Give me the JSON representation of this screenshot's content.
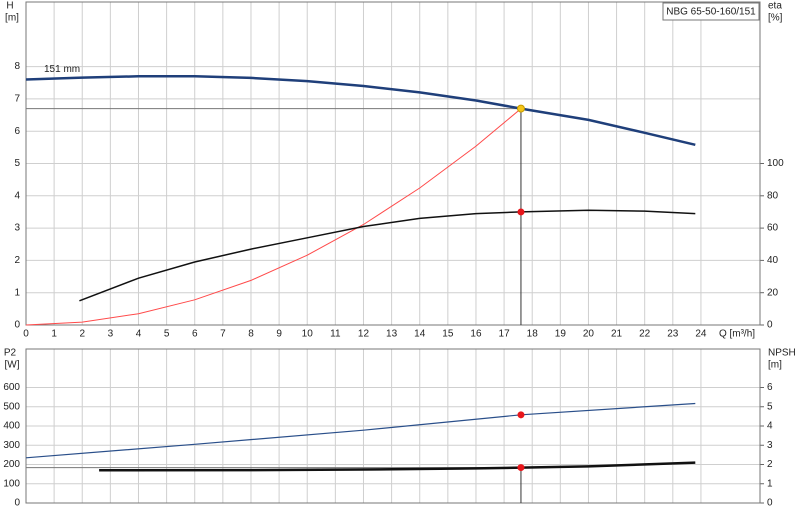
{
  "chart_data": [
    {
      "type": "line",
      "title": "NBG 65-50-160/151",
      "ylabel": "H",
      "yunit": "[m]",
      "y2label": "eta",
      "y2unit": "[%]",
      "xlabel": "Q [m³/h]",
      "annotation": "151 mm",
      "xlim": [
        0,
        26.1
      ],
      "xticks": [
        0,
        1,
        2,
        3,
        4,
        5,
        6,
        7,
        8,
        9,
        10,
        11,
        12,
        13,
        14,
        15,
        16,
        17,
        18,
        19,
        20,
        21,
        22,
        23,
        24
      ],
      "ylim": [
        0,
        10
      ],
      "yticks": [
        0,
        1,
        2,
        3,
        4,
        5,
        6,
        7,
        8
      ],
      "y2lim": [
        0,
        200
      ],
      "y2ticks": [
        0,
        20,
        40,
        60,
        80,
        100
      ],
      "grid": true,
      "series": [
        {
          "color": "#1f3f7a",
          "width": 2.5,
          "axis": "y",
          "x": [
            0,
            2,
            4,
            6,
            8,
            10,
            12,
            14,
            16,
            17.6,
            20,
            22,
            23.8
          ],
          "values": [
            7.6,
            7.66,
            7.7,
            7.7,
            7.65,
            7.55,
            7.4,
            7.2,
            6.95,
            6.7,
            6.35,
            5.95,
            5.58
          ]
        },
        {
          "color": "#ff4a4a",
          "width": 1,
          "axis": "y",
          "x": [
            0,
            2,
            4,
            6,
            8,
            10,
            12,
            14,
            16,
            17.6
          ],
          "values": [
            0,
            0.09,
            0.35,
            0.78,
            1.38,
            2.16,
            3.11,
            4.24,
            5.54,
            6.7
          ]
        },
        {
          "color": "#111111",
          "width": 1.5,
          "axis": "y2",
          "x": [
            1.9,
            4,
            6,
            8,
            10,
            12,
            14,
            16,
            17.6,
            20,
            22,
            23.8
          ],
          "values": [
            15,
            29,
            39,
            47,
            54,
            61,
            66,
            69,
            70,
            71,
            70.5,
            69
          ]
        }
      ],
      "points": [
        {
          "x": 17.6,
          "value": 6.7,
          "axis": "y",
          "color": "#f5c518",
          "guides": true
        },
        {
          "x": 17.6,
          "value": 70,
          "axis": "y2",
          "color": "#e8161b",
          "guides": false
        }
      ]
    },
    {
      "type": "line",
      "ylabel": "P2",
      "yunit": "[W]",
      "y2label": "NPSH",
      "y2unit": "[m]",
      "xlim": [
        0,
        26.1
      ],
      "xticks": [
        0,
        1,
        2,
        3,
        4,
        5,
        6,
        7,
        8,
        9,
        10,
        11,
        12,
        13,
        14,
        15,
        16,
        17,
        18,
        19,
        20,
        21,
        22,
        23,
        24
      ],
      "ylim": [
        0,
        800
      ],
      "yticks": [
        0,
        100,
        200,
        300,
        400,
        500,
        600
      ],
      "y2lim": [
        0,
        8
      ],
      "y2ticks": [
        0,
        1,
        2,
        3,
        4,
        5,
        6
      ],
      "grid": true,
      "series": [
        {
          "color": "#2a4f8a",
          "width": 1.2,
          "axis": "y",
          "x": [
            0,
            6,
            12,
            17.6,
            23.8
          ],
          "values": [
            235,
            305,
            378,
            458,
            517
          ]
        },
        {
          "color": "#111111",
          "width": 2.5,
          "axis": "y2",
          "x": [
            2.6,
            8,
            12,
            16,
            17.6,
            20,
            23.8
          ],
          "values": [
            1.7,
            1.71,
            1.74,
            1.8,
            1.84,
            1.9,
            2.1
          ]
        }
      ],
      "points": [
        {
          "x": 17.6,
          "value": 458,
          "axis": "y",
          "color": "#e8161b",
          "guides": false
        },
        {
          "x": 17.6,
          "value": 1.84,
          "axis": "y2",
          "color": "#e8161b",
          "guides": true
        }
      ]
    }
  ]
}
